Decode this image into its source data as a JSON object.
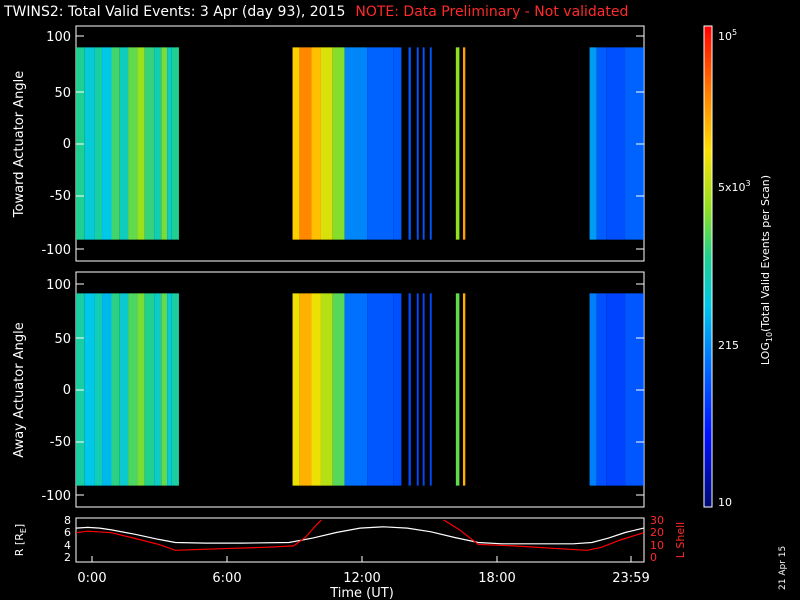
{
  "title": {
    "main": "TWINS2: Total Valid Events:  3 Apr (day  93), 2015",
    "note": "NOTE: Data Preliminary - Not validated"
  },
  "panels": {
    "top": {
      "ylabel": "Toward Actuator Angle",
      "yticks": [
        "100",
        "50",
        "0",
        "-50",
        "-100"
      ]
    },
    "bottom": {
      "ylabel": "Away Actuator Angle",
      "yticks": [
        "100",
        "50",
        "0",
        "-50",
        "-100"
      ]
    },
    "orbit": {
      "ylabel": "R [R",
      "ylabel_sub": "E",
      "ylabel_end": "]",
      "yticks": [
        "8",
        "6",
        "4",
        "2"
      ],
      "y2label": "L Shell",
      "y2ticks": [
        "30",
        "20",
        "10",
        "0"
      ]
    }
  },
  "xaxis": {
    "label": "Time (UT)",
    "ticks": [
      "0:00",
      "6:00",
      "12:00",
      "18:00",
      "23:59"
    ]
  },
  "colorbar": {
    "label_pre": "LOG",
    "label_sub": "10",
    "label_post": "(Total Valid Events per Scan)",
    "ticks": [
      {
        "base": "10",
        "exp": "5"
      },
      {
        "base": "5x10",
        "exp": "3"
      },
      {
        "base": "215",
        "exp": ""
      },
      {
        "base": "10",
        "exp": ""
      }
    ]
  },
  "stamp": "21 Apr 15",
  "colors": {
    "note": "#ff2a2a",
    "orbit_r": "#ffffff",
    "orbit_l": "#ff0000"
  },
  "chart_data": [
    {
      "type": "heatmap",
      "name": "Toward Actuator Angle",
      "xlabel": "Time (UT)",
      "ylabel": "Toward Actuator Angle",
      "xlim": [
        0,
        24
      ],
      "ylim": [
        -110,
        110
      ],
      "zscale": "log",
      "zlim": [
        10,
        100000
      ],
      "segments": [
        {
          "t0": 0.0,
          "t1": 0.35,
          "level": 0.52
        },
        {
          "t0": 0.35,
          "t1": 0.8,
          "level": 0.44
        },
        {
          "t0": 0.8,
          "t1": 1.1,
          "level": 0.5
        },
        {
          "t0": 1.1,
          "t1": 1.5,
          "level": 0.42
        },
        {
          "t0": 1.5,
          "t1": 1.85,
          "level": 0.55
        },
        {
          "t0": 1.85,
          "t1": 2.2,
          "level": 0.47
        },
        {
          "t0": 2.2,
          "t1": 2.6,
          "level": 0.58
        },
        {
          "t0": 2.6,
          "t1": 2.9,
          "level": 0.63
        },
        {
          "t0": 2.9,
          "t1": 3.3,
          "level": 0.54
        },
        {
          "t0": 3.3,
          "t1": 3.6,
          "level": 0.48
        },
        {
          "t0": 3.6,
          "t1": 3.85,
          "level": 0.6
        },
        {
          "t0": 3.85,
          "t1": 4.05,
          "level": 0.46
        },
        {
          "t0": 4.05,
          "t1": 4.35,
          "level": 0.52
        },
        {
          "t0": 9.15,
          "t1": 9.45,
          "level": 0.76
        },
        {
          "t0": 9.45,
          "t1": 9.95,
          "level": 0.85
        },
        {
          "t0": 9.95,
          "t1": 10.35,
          "level": 0.78
        },
        {
          "t0": 10.35,
          "t1": 10.85,
          "level": 0.7
        },
        {
          "t0": 10.85,
          "t1": 11.35,
          "level": 0.61
        },
        {
          "t0": 11.35,
          "t1": 12.3,
          "level": 0.33
        },
        {
          "t0": 12.3,
          "t1": 13.4,
          "level": 0.28
        },
        {
          "t0": 13.4,
          "t1": 13.75,
          "level": 0.27
        },
        {
          "t0": 14.05,
          "t1": 14.15,
          "level": 0.26
        },
        {
          "t0": 14.4,
          "t1": 14.48,
          "level": 0.26
        },
        {
          "t0": 14.65,
          "t1": 14.73,
          "level": 0.26
        },
        {
          "t0": 14.95,
          "t1": 15.03,
          "level": 0.26
        },
        {
          "t0": 16.05,
          "t1": 16.2,
          "level": 0.62
        },
        {
          "t0": 16.35,
          "t1": 16.45,
          "level": 0.82
        },
        {
          "t0": 21.7,
          "t1": 22.0,
          "level": 0.36
        },
        {
          "t0": 22.0,
          "t1": 22.4,
          "level": 0.27
        },
        {
          "t0": 22.4,
          "t1": 23.2,
          "level": 0.25
        },
        {
          "t0": 23.2,
          "t1": 23.99,
          "level": 0.28
        }
      ]
    },
    {
      "type": "heatmap",
      "name": "Away Actuator Angle",
      "xlabel": "Time (UT)",
      "ylabel": "Away Actuator Angle",
      "xlim": [
        0,
        24
      ],
      "ylim": [
        -110,
        110
      ],
      "zscale": "log",
      "zlim": [
        10,
        100000
      ],
      "segments": [
        {
          "t0": 0.0,
          "t1": 0.35,
          "level": 0.5
        },
        {
          "t0": 0.35,
          "t1": 0.8,
          "level": 0.42
        },
        {
          "t0": 0.8,
          "t1": 1.1,
          "level": 0.48
        },
        {
          "t0": 1.1,
          "t1": 1.5,
          "level": 0.4
        },
        {
          "t0": 1.5,
          "t1": 1.85,
          "level": 0.53
        },
        {
          "t0": 1.85,
          "t1": 2.2,
          "level": 0.45
        },
        {
          "t0": 2.2,
          "t1": 2.6,
          "level": 0.56
        },
        {
          "t0": 2.6,
          "t1": 2.9,
          "level": 0.6
        },
        {
          "t0": 2.9,
          "t1": 3.3,
          "level": 0.52
        },
        {
          "t0": 3.3,
          "t1": 3.6,
          "level": 0.46
        },
        {
          "t0": 3.6,
          "t1": 3.85,
          "level": 0.58
        },
        {
          "t0": 3.85,
          "t1": 4.05,
          "level": 0.44
        },
        {
          "t0": 4.05,
          "t1": 4.35,
          "level": 0.5
        },
        {
          "t0": 9.15,
          "t1": 9.45,
          "level": 0.72
        },
        {
          "t0": 9.45,
          "t1": 9.95,
          "level": 0.8
        },
        {
          "t0": 9.95,
          "t1": 10.35,
          "level": 0.72
        },
        {
          "t0": 10.35,
          "t1": 10.85,
          "level": 0.66
        },
        {
          "t0": 10.85,
          "t1": 11.35,
          "level": 0.57
        },
        {
          "t0": 11.35,
          "t1": 12.3,
          "level": 0.3
        },
        {
          "t0": 12.3,
          "t1": 13.4,
          "level": 0.26
        },
        {
          "t0": 13.4,
          "t1": 13.75,
          "level": 0.25
        },
        {
          "t0": 14.05,
          "t1": 14.15,
          "level": 0.24
        },
        {
          "t0": 14.4,
          "t1": 14.48,
          "level": 0.24
        },
        {
          "t0": 14.65,
          "t1": 14.73,
          "level": 0.24
        },
        {
          "t0": 14.95,
          "t1": 15.03,
          "level": 0.24
        },
        {
          "t0": 16.05,
          "t1": 16.2,
          "level": 0.58
        },
        {
          "t0": 16.35,
          "t1": 16.45,
          "level": 0.8
        },
        {
          "t0": 21.7,
          "t1": 22.0,
          "level": 0.32
        },
        {
          "t0": 22.0,
          "t1": 22.4,
          "level": 0.25
        },
        {
          "t0": 22.4,
          "t1": 23.2,
          "level": 0.23
        },
        {
          "t0": 23.2,
          "t1": 23.99,
          "level": 0.26
        }
      ]
    },
    {
      "type": "line",
      "xlabel": "Time (UT)",
      "xlim": [
        0,
        24
      ],
      "ylim": [
        1.5,
        8.5
      ],
      "y2lim": [
        0,
        30
      ],
      "series": [
        {
          "axis": "left",
          "color": "#ffffff",
          "x": [
            0,
            0.5,
            1.0,
            1.5,
            2.5,
            3.5,
            4.2,
            5.5,
            7.0,
            9.0,
            10.0,
            11.0,
            12.0,
            13.0,
            14.0,
            15.0,
            16.0,
            17.0,
            18.0,
            19.5,
            21.0,
            21.8,
            22.5,
            23.2,
            23.99
          ],
          "y": [
            6.9,
            7.0,
            6.9,
            6.6,
            5.9,
            5.1,
            4.6,
            4.5,
            4.5,
            4.6,
            5.3,
            6.2,
            6.9,
            7.1,
            6.9,
            6.3,
            5.4,
            4.6,
            4.4,
            4.4,
            4.4,
            4.6,
            5.3,
            6.2,
            6.9
          ]
        },
        {
          "axis": "right",
          "color": "#ff0000",
          "x": [
            0,
            0.5,
            1.5,
            2.5,
            3.5,
            4.2,
            6.0,
            8.0,
            9.2,
            9.7,
            10.2,
            10.5
          ],
          "y": [
            20,
            21,
            20,
            16,
            12,
            8,
            9,
            10,
            11,
            17,
            26,
            31
          ]
        },
        {
          "axis": "right",
          "color": "#ff0000",
          "x": [
            15.3,
            16.2,
            17.0,
            18.5,
            20.5,
            21.6,
            22.2,
            23.0,
            23.99
          ],
          "y": [
            31,
            22,
            12,
            11,
            9,
            8,
            10,
            15,
            20
          ]
        }
      ]
    }
  ]
}
